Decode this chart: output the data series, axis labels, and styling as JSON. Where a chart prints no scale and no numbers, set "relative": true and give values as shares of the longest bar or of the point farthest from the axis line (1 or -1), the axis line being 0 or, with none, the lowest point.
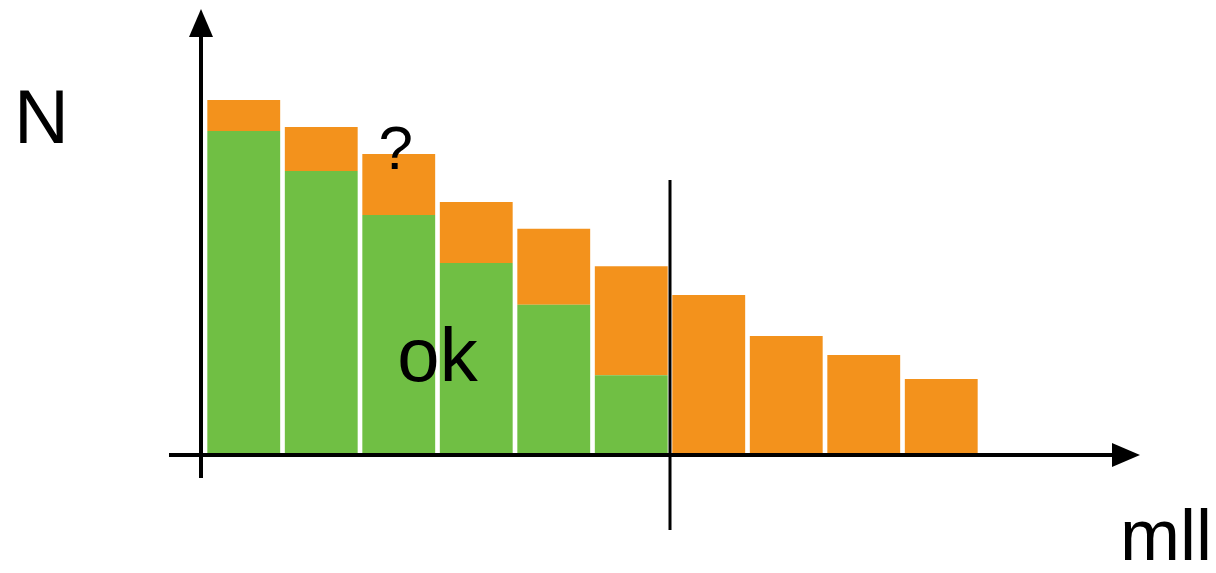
{
  "chart_data": {
    "type": "bar",
    "xlabel": "mll",
    "ylabel": "N",
    "relative": true,
    "stacked": true,
    "legend": false,
    "categories": [
      null,
      null,
      null,
      null,
      null,
      null,
      null,
      null,
      null,
      null
    ],
    "series": [
      {
        "color": "#70bf44",
        "values": [
          0.913,
          0.8,
          0.676,
          0.541,
          0.423,
          0.225,
          0,
          0,
          0,
          0
        ]
      },
      {
        "color": "#f3921c",
        "values": [
          0.087,
          0.124,
          0.172,
          0.172,
          0.214,
          0.307,
          0.451,
          0.335,
          0.282,
          0.214
        ]
      }
    ],
    "annotations": [
      "?",
      "ok"
    ]
  }
}
